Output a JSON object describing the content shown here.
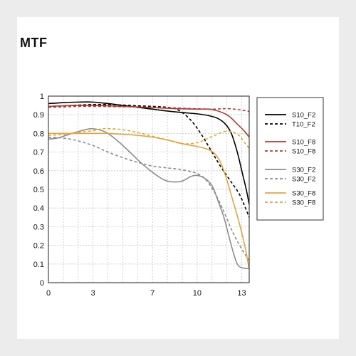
{
  "title": "MTF",
  "chart_data": {
    "type": "line",
    "title": "MTF",
    "xlabel": "",
    "ylabel": "",
    "xlim": [
      0,
      13.5
    ],
    "ylim": [
      0,
      1
    ],
    "grid": true,
    "grid_style": "dashed",
    "xticks": [
      0,
      3,
      7,
      10,
      13
    ],
    "yticks": [
      0,
      0.1,
      0.2,
      0.3,
      0.4,
      0.5,
      0.6,
      0.7,
      0.8,
      0.9,
      1
    ],
    "ytick_labels": [
      "0",
      "0.1",
      "0.2",
      "0.3",
      "0.4",
      "0.5",
      "0.6",
      "0.7",
      "0.8",
      "0.9",
      "1"
    ],
    "legend_position": "right",
    "series": [
      {
        "name": "S10_F2",
        "color": "#000000",
        "dashed": false,
        "points": [
          [
            0,
            0.96
          ],
          [
            1,
            0.965
          ],
          [
            2,
            0.968
          ],
          [
            3,
            0.968
          ],
          [
            4,
            0.96
          ],
          [
            5,
            0.95
          ],
          [
            6,
            0.94
          ],
          [
            7,
            0.93
          ],
          [
            8,
            0.92
          ],
          [
            9,
            0.912
          ],
          [
            10,
            0.905
          ],
          [
            10.8,
            0.895
          ],
          [
            11.4,
            0.88
          ],
          [
            11.9,
            0.85
          ],
          [
            12.3,
            0.8
          ],
          [
            12.7,
            0.7
          ],
          [
            13,
            0.6
          ],
          [
            13.3,
            0.5
          ],
          [
            13.5,
            0.42
          ]
        ]
      },
      {
        "name": "T10_F2",
        "color": "#000000",
        "dashed": true,
        "points": [
          [
            0,
            0.945
          ],
          [
            1,
            0.948
          ],
          [
            2,
            0.952
          ],
          [
            3,
            0.955
          ],
          [
            4,
            0.955
          ],
          [
            5,
            0.952
          ],
          [
            6,
            0.948
          ],
          [
            7,
            0.945
          ],
          [
            8,
            0.94
          ],
          [
            8.6,
            0.93
          ],
          [
            9.2,
            0.9
          ],
          [
            9.8,
            0.85
          ],
          [
            10.4,
            0.78
          ],
          [
            11,
            0.7
          ],
          [
            11.6,
            0.62
          ],
          [
            12.2,
            0.55
          ],
          [
            12.8,
            0.48
          ],
          [
            13.2,
            0.41
          ],
          [
            13.5,
            0.35
          ]
        ]
      },
      {
        "name": "S10_F8",
        "color": "#b03a2e",
        "dashed": false,
        "points": [
          [
            0,
            0.945
          ],
          [
            1,
            0.948
          ],
          [
            2,
            0.95
          ],
          [
            3,
            0.95
          ],
          [
            4,
            0.948
          ],
          [
            5,
            0.945
          ],
          [
            6,
            0.942
          ],
          [
            7,
            0.938
          ],
          [
            8,
            0.935
          ],
          [
            9,
            0.932
          ],
          [
            10,
            0.93
          ],
          [
            11,
            0.928
          ],
          [
            12,
            0.9
          ],
          [
            12.7,
            0.85
          ],
          [
            13.2,
            0.81
          ],
          [
            13.5,
            0.78
          ]
        ]
      },
      {
        "name": "S10_F8",
        "color": "#b03a2e",
        "dashed": true,
        "points": [
          [
            0,
            0.94
          ],
          [
            1,
            0.942
          ],
          [
            2,
            0.945
          ],
          [
            3,
            0.945
          ],
          [
            4,
            0.944
          ],
          [
            5,
            0.943
          ],
          [
            6,
            0.942
          ],
          [
            7,
            0.94
          ],
          [
            8,
            0.938
          ],
          [
            9,
            0.935
          ],
          [
            10,
            0.932
          ],
          [
            11,
            0.93
          ],
          [
            11.6,
            0.932
          ],
          [
            12,
            0.933
          ],
          [
            12.5,
            0.93
          ],
          [
            13,
            0.925
          ],
          [
            13.5,
            0.918
          ]
        ]
      },
      {
        "name": "S30_F2",
        "color": "#8c8c8c",
        "dashed": false,
        "points": [
          [
            0,
            0.77
          ],
          [
            0.6,
            0.775
          ],
          [
            1.2,
            0.79
          ],
          [
            2,
            0.81
          ],
          [
            2.8,
            0.825
          ],
          [
            3.4,
            0.82
          ],
          [
            4,
            0.8
          ],
          [
            4.8,
            0.75
          ],
          [
            5.6,
            0.69
          ],
          [
            6.4,
            0.63
          ],
          [
            7.2,
            0.58
          ],
          [
            7.8,
            0.55
          ],
          [
            8.4,
            0.54
          ],
          [
            9,
            0.545
          ],
          [
            9.6,
            0.57
          ],
          [
            10,
            0.575
          ],
          [
            10.5,
            0.56
          ],
          [
            11,
            0.52
          ],
          [
            11.4,
            0.44
          ],
          [
            11.8,
            0.35
          ],
          [
            12.1,
            0.26
          ],
          [
            12.4,
            0.17
          ],
          [
            12.7,
            0.1
          ],
          [
            13,
            0.08
          ],
          [
            13.5,
            0.075
          ]
        ]
      },
      {
        "name": "S30_F2",
        "color": "#8c8c8c",
        "dashed": true,
        "points": [
          [
            0,
            0.78
          ],
          [
            1,
            0.775
          ],
          [
            2,
            0.76
          ],
          [
            3,
            0.735
          ],
          [
            4,
            0.7
          ],
          [
            5,
            0.67
          ],
          [
            6,
            0.645
          ],
          [
            7,
            0.625
          ],
          [
            8,
            0.615
          ],
          [
            9,
            0.605
          ],
          [
            10,
            0.585
          ],
          [
            10.6,
            0.55
          ],
          [
            11.2,
            0.48
          ],
          [
            11.8,
            0.38
          ],
          [
            12.4,
            0.27
          ],
          [
            13,
            0.18
          ],
          [
            13.5,
            0.12
          ]
        ]
      },
      {
        "name": "S30_F8",
        "color": "#e4a43a",
        "dashed": false,
        "points": [
          [
            0,
            0.8
          ],
          [
            1,
            0.8
          ],
          [
            2,
            0.8
          ],
          [
            3,
            0.8
          ],
          [
            4,
            0.8
          ],
          [
            5,
            0.795
          ],
          [
            6,
            0.79
          ],
          [
            7,
            0.78
          ],
          [
            8,
            0.765
          ],
          [
            9,
            0.745
          ],
          [
            10,
            0.73
          ],
          [
            10.7,
            0.715
          ],
          [
            11.2,
            0.69
          ],
          [
            11.6,
            0.64
          ],
          [
            12,
            0.55
          ],
          [
            12.4,
            0.44
          ],
          [
            12.8,
            0.33
          ],
          [
            13.2,
            0.2
          ],
          [
            13.5,
            0.07
          ]
        ]
      },
      {
        "name": "S30_F8",
        "color": "#e4a43a",
        "dashed": true,
        "points": [
          [
            0,
            0.79
          ],
          [
            1,
            0.795
          ],
          [
            2,
            0.805
          ],
          [
            3,
            0.815
          ],
          [
            3.6,
            0.825
          ],
          [
            4.2,
            0.825
          ],
          [
            5,
            0.82
          ],
          [
            6,
            0.805
          ],
          [
            7,
            0.785
          ],
          [
            8,
            0.765
          ],
          [
            9,
            0.745
          ],
          [
            10,
            0.75
          ],
          [
            10.6,
            0.77
          ],
          [
            11.2,
            0.79
          ],
          [
            11.8,
            0.81
          ],
          [
            12.3,
            0.81
          ],
          [
            12.8,
            0.79
          ],
          [
            13.2,
            0.75
          ],
          [
            13.5,
            0.72
          ]
        ]
      }
    ]
  }
}
